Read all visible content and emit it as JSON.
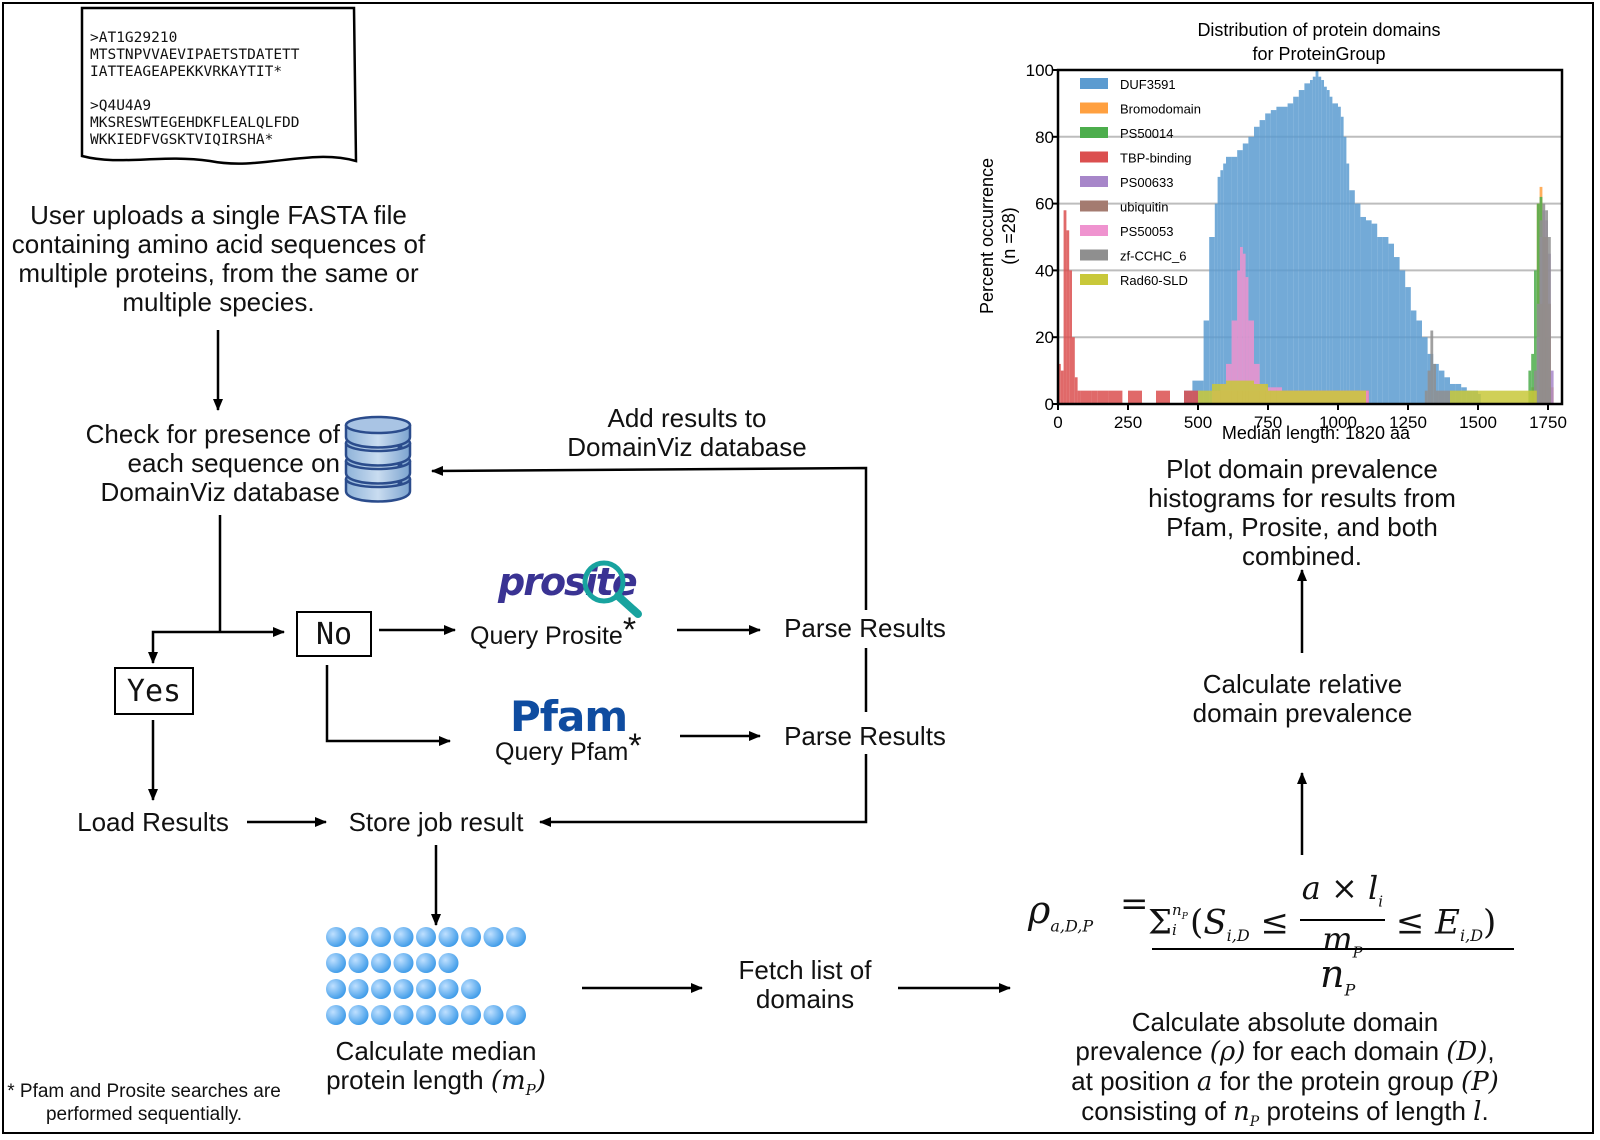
{
  "fasta": {
    "lines": [
      ">AT1G29210",
      "MTSTNPVVAEVIPAETSTDATETT",
      "IATTEAGEAPEKKVRKAYTIT*",
      "",
      ">Q4U4A9",
      "MKSRESWTEGEHDKFLEALQLFDD",
      "WKKIEDFVGSKTVIQIRSHA*"
    ]
  },
  "steps": {
    "upload": "User uploads a single FASTA file containing amino acid sequences of multiple proteins, from the same or multiple species.",
    "check": "Check for presence of each sequence on DomainViz database",
    "yes": "Yes",
    "no": "No",
    "query_prosite": "Query Prosite",
    "query_pfam": "Query Pfam",
    "asterisk": "*",
    "parse_results_1": "Parse Results",
    "parse_results_2": "Parse Results",
    "add_results": "Add results to DomainViz database",
    "load_results": "Load Results",
    "store_job": "Store job result",
    "calc_median": "Calculate median protein length",
    "calc_median_sym": "(m",
    "calc_median_sub": "P",
    "calc_median_close": ")",
    "fetch_domains": "Fetch list of domains",
    "calc_relative": "Calculate relative domain prevalence",
    "plot_histograms": "Plot domain prevalence histograms for results from Pfam, Prosite, and both combined.",
    "calc_absolute": {
      "l1": "Calculate absolute domain",
      "l2a": "prevalence ",
      "l2b": "(ρ)",
      "l2c": " for each domain ",
      "l2d": "(D)",
      "l2e": ",",
      "l3a": "at position ",
      "l3b": "a",
      "l3c": " for the protein group ",
      "l3d": "(P)",
      "l4a": "consisting of ",
      "l4b": "n",
      "l4c": "P",
      "l4d": " proteins of length ",
      "l4e": "l",
      "l4f": "."
    },
    "footnote": "* Pfam and Prosite searches are performed sequentially."
  },
  "logos": {
    "prosite": "prosite",
    "pfam": "Pfam",
    "icon_database": "database-icon",
    "icon_magnifier": "magnifier-icon",
    "icon_protein_beads": "protein-beads-icon"
  },
  "formula": {
    "lhs": "ρ",
    "lhs_sub": "a,D,P",
    "equals": "=",
    "sum": "Σ",
    "sum_sub": "i",
    "sum_sup": "n",
    "sum_sup_sub": "P",
    "open": "(",
    "s": "S",
    "s_sub": "i,D",
    "leq1": "≤",
    "num": "a × l",
    "num_sub": "i",
    "den": "m",
    "den_sub": "P",
    "leq2": "≤",
    "e": "E",
    "e_sub": "i,D",
    "close": ")",
    "denominator": "n",
    "denominator_sub": "P"
  },
  "colors": {
    "DUF3591": "#5b9bd0",
    "Bromodomain": "#ffa040",
    "PS50014": "#4cad4c",
    "TBP-binding": "#db4f4f",
    "PS00633": "#a786c9",
    "ubiquitin": "#a47b70",
    "PS50053": "#ef93cf",
    "zf-CCHC_6": "#8f8f8f",
    "Rad60-SLD": "#c8c83a",
    "arrow": "#000000",
    "bead": "#3c9ae8"
  },
  "chart_data": {
    "type": "bar",
    "title": "Distribution of protein domains\nfor ProteinGroup",
    "title_lines": [
      "Distribution of protein domains",
      "for ProteinGroup"
    ],
    "xlabel": "Median length: 1820 aa",
    "ylabel": "Percent occurrence",
    "ylabel2": "(n =28)",
    "xlim": [
      0,
      1800
    ],
    "ylim": [
      0,
      100
    ],
    "xticks": [
      0,
      250,
      500,
      750,
      1000,
      1250,
      1500,
      1750
    ],
    "yticks": [
      0,
      20,
      40,
      60,
      80,
      100
    ],
    "grid": "horizontal",
    "legend": "top-left",
    "series": [
      {
        "name": "DUF3591",
        "x": [
          450,
          480,
          520,
          540,
          560,
          570,
          580,
          590,
          600,
          620,
          640,
          660,
          680,
          700,
          720,
          740,
          760,
          780,
          800,
          820,
          840,
          860,
          880,
          900,
          910,
          920,
          930,
          940,
          950,
          960,
          970,
          980,
          1000,
          1010,
          1020,
          1030,
          1040,
          1060,
          1080,
          1100,
          1120,
          1140,
          1160,
          1180,
          1200,
          1220,
          1240,
          1260,
          1280,
          1300,
          1320,
          1340,
          1360,
          1380,
          1400,
          1420,
          1440,
          1460,
          1480,
          1500
        ],
        "y": [
          4,
          7,
          25,
          50,
          60,
          68,
          70,
          72,
          74,
          74,
          76,
          78,
          80,
          83,
          85,
          87,
          88,
          89,
          89,
          90,
          92,
          94,
          96,
          97,
          98,
          100,
          98,
          97,
          95,
          94,
          92,
          90,
          89,
          86,
          80,
          72,
          64,
          60,
          56,
          55,
          54,
          50,
          50,
          48,
          44,
          40,
          35,
          28,
          25,
          20,
          15,
          12,
          10,
          8,
          6,
          6,
          5,
          4,
          4,
          3
        ]
      },
      {
        "name": "Bromodomain",
        "x": [
          1690,
          1700,
          1710,
          1720,
          1730,
          1740,
          1750,
          1760
        ],
        "y": [
          5,
          10,
          60,
          65,
          55,
          40,
          20,
          5
        ]
      },
      {
        "name": "PS50014",
        "x": [
          1680,
          1690,
          1700,
          1710,
          1720,
          1730,
          1740,
          1750
        ],
        "y": [
          10,
          15,
          40,
          60,
          62,
          50,
          20,
          5
        ]
      },
      {
        "name": "TBP-binding",
        "x": [
          0,
          10,
          20,
          30,
          40,
          50,
          60,
          70,
          80,
          100,
          120,
          140,
          180,
          250,
          350,
          450,
          550,
          600,
          650,
          700,
          750,
          800,
          850,
          900,
          950,
          1000,
          1050,
          1100
        ],
        "y": [
          12,
          10,
          58,
          52,
          40,
          20,
          8,
          4,
          4,
          4,
          4,
          4,
          4,
          4,
          4,
          4,
          4,
          4,
          4,
          4,
          4,
          4,
          4,
          4,
          4,
          4,
          4,
          4
        ]
      },
      {
        "name": "PS00633",
        "x": [
          1710,
          1720,
          1730,
          1740,
          1750,
          1760
        ],
        "y": [
          20,
          50,
          58,
          55,
          45,
          10
        ]
      },
      {
        "name": "ubiquitin",
        "x": [
          1720,
          1730,
          1740,
          1750
        ],
        "y": [
          30,
          50,
          50,
          30
        ]
      },
      {
        "name": "PS50053",
        "x": [
          550,
          580,
          600,
          620,
          640,
          650,
          660,
          670,
          680,
          700,
          720,
          740,
          760,
          780,
          800,
          850,
          900,
          950,
          1000,
          1050,
          1100
        ],
        "y": [
          4,
          6,
          12,
          25,
          40,
          47,
          45,
          38,
          25,
          12,
          6,
          5,
          5,
          5,
          4,
          4,
          4,
          4,
          4,
          4,
          4
        ]
      },
      {
        "name": "zf-CCHC_6",
        "x": [
          1310,
          1320,
          1330,
          1340,
          1350,
          1700,
          1710,
          1720,
          1730,
          1740,
          1750
        ],
        "y": [
          4,
          10,
          22,
          12,
          4,
          10,
          30,
          55,
          60,
          58,
          50
        ]
      },
      {
        "name": "Rad60-SLD",
        "x": [
          500,
          550,
          600,
          650,
          700,
          750,
          800,
          850,
          900,
          950,
          1000,
          1050,
          1400,
          1450,
          1500,
          1550,
          1600,
          1650,
          1700
        ],
        "y": [
          4,
          6,
          7,
          7,
          6,
          4,
          4,
          4,
          4,
          4,
          4,
          4,
          4,
          4,
          4,
          4,
          4,
          4,
          4
        ]
      }
    ]
  }
}
